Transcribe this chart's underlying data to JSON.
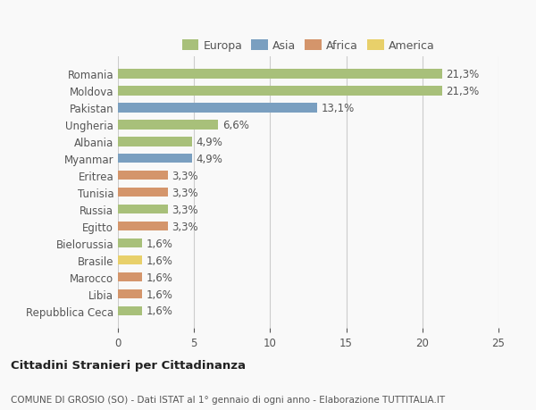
{
  "countries": [
    "Romania",
    "Moldova",
    "Pakistan",
    "Ungheria",
    "Albania",
    "Myanmar",
    "Eritrea",
    "Tunisia",
    "Russia",
    "Egitto",
    "Bielorussia",
    "Brasile",
    "Marocco",
    "Libia",
    "Repubblica Ceca"
  ],
  "values": [
    21.3,
    21.3,
    13.1,
    6.6,
    4.9,
    4.9,
    3.3,
    3.3,
    3.3,
    3.3,
    1.6,
    1.6,
    1.6,
    1.6,
    1.6
  ],
  "labels": [
    "21,3%",
    "21,3%",
    "13,1%",
    "6,6%",
    "4,9%",
    "4,9%",
    "3,3%",
    "3,3%",
    "3,3%",
    "3,3%",
    "1,6%",
    "1,6%",
    "1,6%",
    "1,6%",
    "1,6%"
  ],
  "continents": [
    "Europa",
    "Europa",
    "Asia",
    "Europa",
    "Europa",
    "Asia",
    "Africa",
    "Africa",
    "Europa",
    "Africa",
    "Europa",
    "America",
    "Africa",
    "Africa",
    "Europa"
  ],
  "colors": {
    "Europa": "#a8c07a",
    "Asia": "#7a9fc0",
    "Africa": "#d4956b",
    "America": "#e8d06a"
  },
  "legend_order": [
    "Europa",
    "Asia",
    "Africa",
    "America"
  ],
  "title_bold": "Cittadini Stranieri per Cittadinanza",
  "title_sub": "COMUNE DI GROSIO (SO) - Dati ISTAT al 1° gennaio di ogni anno - Elaborazione TUTTITALIA.IT",
  "xlim": [
    0,
    25
  ],
  "xticks": [
    0,
    5,
    10,
    15,
    20,
    25
  ],
  "background_color": "#f9f9f9",
  "bar_height": 0.55,
  "grid_color": "#cccccc",
  "text_color": "#555555",
  "label_fontsize": 8.5,
  "tick_fontsize": 8.5,
  "legend_fontsize": 9.0,
  "title_fontsize": 9.5,
  "sub_fontsize": 7.5
}
